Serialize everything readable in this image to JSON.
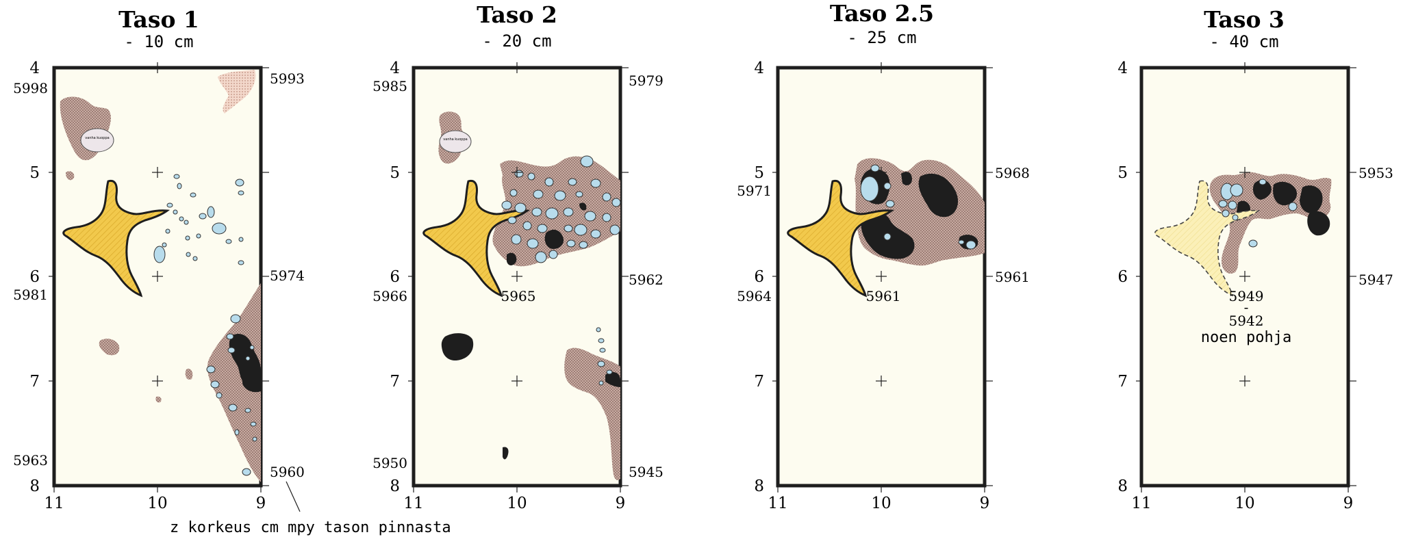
{
  "colors": {
    "background": "#fdfcf0",
    "frame": "#1e1e1e",
    "soil": "#c8aba2",
    "soil_dots": "#6a4a42",
    "stone": "#b8dcec",
    "charcoal": "#1e1e1e",
    "yellow": "#f2c94c",
    "yellow_faded": "#fbf0b8",
    "pinkish": "#f0cfbf"
  },
  "panels": [
    {
      "title": "Taso 1",
      "depth": "- 10 cm",
      "y_ticks": [
        "4",
        "5",
        "6",
        "7",
        "8"
      ],
      "x_ticks": [
        "11",
        "10",
        "9"
      ],
      "values": {
        "tl": "5998",
        "tr": "5993",
        "ml": "5981",
        "mr": "5974",
        "bl": "5963",
        "br": "5960"
      },
      "pit_label": "vanha kuoppa"
    },
    {
      "title": "Taso 2",
      "depth": "- 20 cm",
      "y_ticks": [
        "4",
        "5",
        "6",
        "7",
        "8"
      ],
      "x_ticks": [
        "11",
        "10",
        "9"
      ],
      "values": {
        "tl": "5985",
        "tr": "5979",
        "ml": "5966",
        "c": "5965",
        "mr": "5962",
        "bl": "5950",
        "br": "5945"
      },
      "pit_label": "vanha kuoppa"
    },
    {
      "title": "Taso 2.5",
      "depth": "- 25 cm",
      "y_ticks": [
        "4",
        "5",
        "6",
        "7",
        "8"
      ],
      "x_ticks": [
        "11",
        "10",
        "9"
      ],
      "values": {
        "ul": "5971",
        "ur": "5968",
        "ml": "5964",
        "c": "5961",
        "mr": "5961"
      }
    },
    {
      "title": "Taso 3",
      "depth": "- 40 cm",
      "y_ticks": [
        "4",
        "5",
        "6",
        "7",
        "8"
      ],
      "x_ticks": [
        "11",
        "10",
        "9"
      ],
      "values": {
        "ur": "5953",
        "mr": "5947",
        "c1": "5949",
        "dash": "-",
        "c2": "5942",
        "note": "noen pohja"
      }
    }
  ],
  "footnote": "z korkeus cm mpy tason pinnasta"
}
